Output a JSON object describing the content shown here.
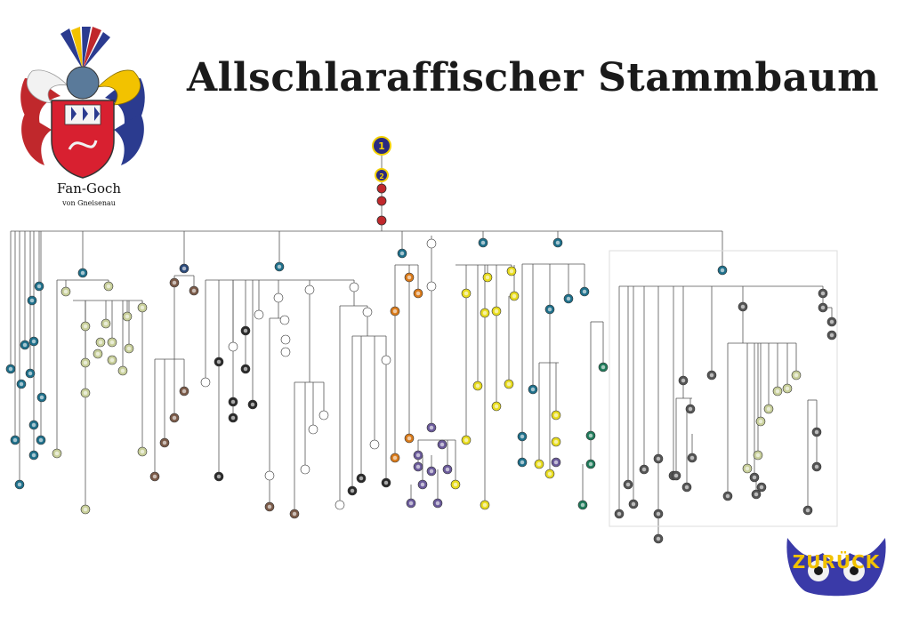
{
  "page": {
    "title": "Allschlaraffischer Stammbaum"
  },
  "crest": {
    "name": "Fan-Goch",
    "subtitle": "von Gneisenau"
  },
  "root_nodes": [
    {
      "label": "1",
      "color": "#2a2a80",
      "ring": "#f2d000"
    },
    {
      "label": "2",
      "color": "#2a2a80",
      "ring": "#f2d000"
    },
    {
      "label": "",
      "color": "#c0282c"
    },
    {
      "label": "",
      "color": "#c0282c"
    },
    {
      "label": "",
      "color": "#c0282c"
    }
  ],
  "colors": {
    "line": "#555555",
    "teal": "#1e6f8a",
    "navy": "#2b4a7a",
    "olive": "#c8cf9a",
    "brown": "#7a5a48",
    "dark": "#2a2a2a",
    "orange": "#d97a1a",
    "yellow": "#e8dc1e",
    "purple": "#6a5a9a",
    "green": "#1f7a5a",
    "grey": "#555555",
    "red": "#c0282c"
  },
  "back_button": {
    "label": "ZURÜCK"
  }
}
